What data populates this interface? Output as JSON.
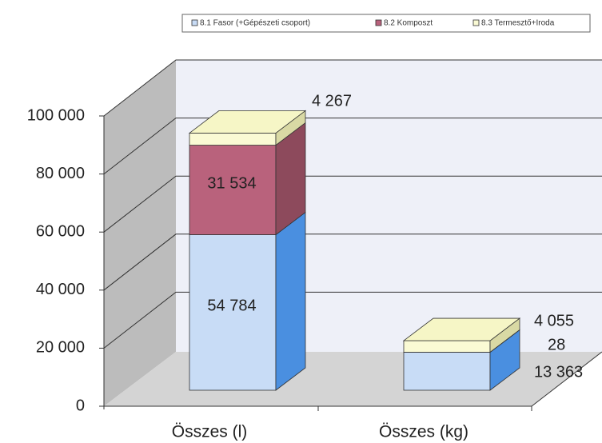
{
  "chart_data": {
    "type": "bar3d_stacked",
    "categories": [
      "Összes (l)",
      "Összes (kg)"
    ],
    "series": [
      {
        "name": "8.1 Fasor (+Gépészeti csoport)",
        "color": "#c8dcf6",
        "values": [
          54784,
          13363
        ],
        "value_labels": [
          "54 784",
          "13 363"
        ]
      },
      {
        "name": "8.2 Komposzt",
        "color": "#b9627c",
        "values": [
          31534,
          28
        ],
        "value_labels": [
          "31 534",
          "28"
        ]
      },
      {
        "name": "8.3 Termesztő+Iroda",
        "color": "#fafad4",
        "values": [
          4267,
          4055
        ],
        "value_labels": [
          "4 267",
          "4 055"
        ]
      }
    ],
    "ylim": [
      0,
      100000
    ],
    "yticks": [
      0,
      {
        "value": 20000,
        "label": "20 000"
      },
      {
        "value": 40000,
        "label": "40 000"
      },
      {
        "value": 60000,
        "label": "60 000"
      },
      {
        "value": 80000,
        "label": "80 000"
      },
      {
        "value": 100000,
        "label": "100 000"
      }
    ],
    "grid": true
  }
}
